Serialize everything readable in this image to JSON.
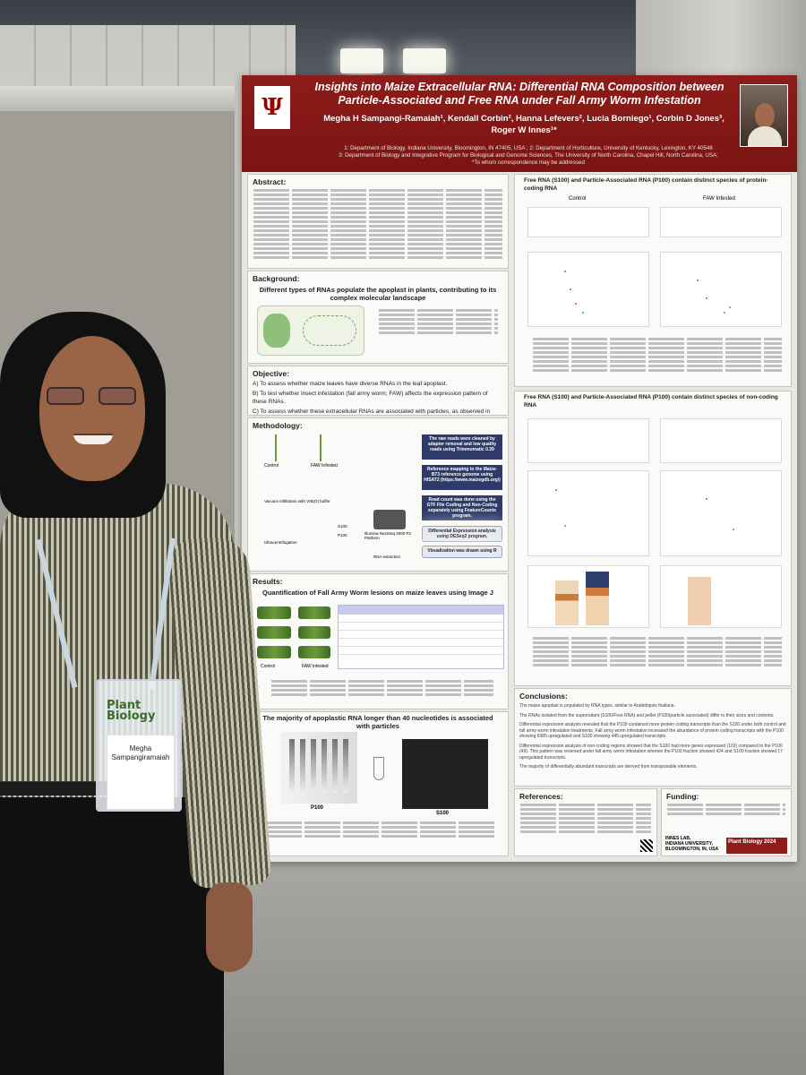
{
  "poster": {
    "title_line1": "Insights into Maize Extracellular RNA: Differential RNA Composition between",
    "title_line2": "Particle-Associated and Free RNA under Fall Army Worm Infestation",
    "authors_line1": "Megha H Sampangi-Ramaiah¹, Kendall Corbin², Hanna Lefevers², Lucia Borniego¹, Corbin D Jones³,",
    "authors_line2": "Roger W Innes¹*",
    "affil_line1": "1: Department of Biology, Indiana University, Bloomington, IN 47405, USA ; 2: Department of Horticulture, University of Kentucky, Lexington, KY 40546",
    "affil_line2": "3: Department of Biology and Integrative Program for Biological and Genome Sciences, The University of North Carolina, Chapel Hill, North Carolina, USA;",
    "affil_line3": "*To whom correspondence may be addressed",
    "abstract_head": "Abstract:",
    "background_head": "Background:",
    "background_sub": "Different types of RNAs populate the apoplast in plants, contributing to its complex molecular landscape",
    "objective_head": "Objective:",
    "objective_a": "A)  To assess whether maize leaves have diverse RNAs in the leaf apoplast.",
    "objective_b": "B) To test whether insect infestation (fall army worm; FAW) affects the expression pattern of these RNAs.",
    "objective_c": "C) To assess whether these extracellular RNAs are associated with particles, as observed in Arabidopsis.",
    "methodology_head": "Methodology:",
    "method_control": "Control",
    "method_faw": "FAW Infested",
    "method_vacuum": "Vacuum infiltration with VIB(O) buffer",
    "method_ultra": "Ultracentrifugation",
    "method_sequencer": "Illumina NextSeq 2000 P2 Platform",
    "method_rna": "RNA extraction",
    "method_s100": "S100",
    "method_p100": "P100",
    "method_step1": "The raw reads were cleaned by adapter removal and low quality reads using Trimmomatic 0.39",
    "method_step2": "Reference mapping to the Maize- B73 reference genome using HISAT2 (https://www.maizegdb.org/)",
    "method_step3": "Read count was done using the GTF File Coding and Non-Coding separately using FeatureCounts program.",
    "method_step4": "Differential Expression analysis using DESeq2 program.",
    "method_step5": "Visualization was drawn using R",
    "results_head": "Results:",
    "results_sub": "Quantification of Fall Army Worm lesions on maize leaves using Image J",
    "results_control": "Control",
    "results_faw": "FAW infested",
    "results_gel_title": "The majority of apoplastic RNA longer than 40 nucleotides is associated with particles",
    "gel_p100": "P100",
    "gel_s100": "S100",
    "right_top_title": "Free RNA (S100) and Particle-Associated RNA (P100) contain distinct species of protein-coding RNA",
    "right_control": "Control",
    "right_faw": "FAW Infested",
    "right_mid_title": "Free RNA (S100) and Particle-Associated RNA (P100) contain distinct species of non-coding RNA",
    "conclusions_head": "Conclusions:",
    "conc_1": "The maize apoplast is populated by RNA types, similar to Arabidopsis thaliana.",
    "conc_2": "The RNAs isolated from the supernatant (S100/Free RNA) and pellet (P100/particle associated) differ in their sizes and contents.",
    "conc_3": "Differential expression analysis revealed that the P100 contained more protein coding transcripts than the S100 under both control and fall army worm infestation treatments. Fall army worm infestation increased the abundance of protein coding transcripts with the P100 showing 6385 upregulated and S100 showing 445 upregulated transcripts.",
    "conc_4": "Differential expression analysis of non-coding regions showed that the S100 had more genes expressed (103) compared to the P100 (49). This pattern was reversed under fall army worm infestation wherein the P100 fraction showed 424 and S100 fraction showed 17 upregulated transcripts.",
    "conc_5": "The majority of differentially abundant transcripts are derived from transposable elements.",
    "references_head": "References:",
    "funding_head": "Funding:",
    "lab_line1": "INNES LAB,",
    "lab_line2": "INDIANA UNIVERSITY,",
    "lab_line3": "BLOOMINGTON, IN, USA",
    "plant_bio_logo": "Plant Biology",
    "plant_bio_year": "2024"
  },
  "badge": {
    "logo": "Plant Biology",
    "name_line1": "Megha",
    "name_line2": "Sampangiramaiah"
  },
  "colors": {
    "poster_header": "#8e1c1a",
    "method_box": "#2e3b6a",
    "poster_bg": "#e9e7e3"
  }
}
